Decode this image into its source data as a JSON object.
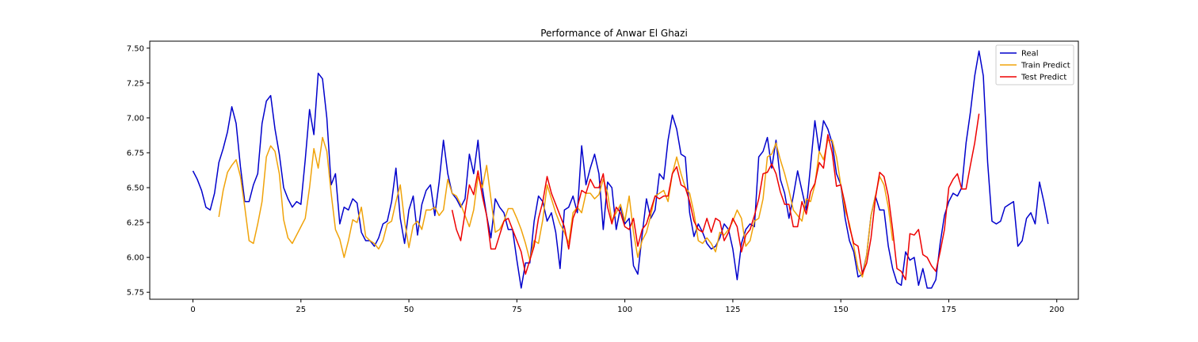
{
  "chart_data": {
    "type": "line",
    "title": "Performance of Anwar El Ghazi",
    "xlabel": "",
    "ylabel": "",
    "xlim": [
      -10,
      205
    ],
    "ylim": [
      5.7,
      7.55
    ],
    "xticks": [
      0,
      25,
      50,
      75,
      100,
      125,
      150,
      175,
      200
    ],
    "xtick_labels": [
      "0",
      "25",
      "50",
      "75",
      "100",
      "125",
      "150",
      "175",
      "200"
    ],
    "yticks": [
      5.75,
      6.0,
      6.25,
      6.5,
      6.75,
      7.0,
      7.25,
      7.5
    ],
    "ytick_labels": [
      "5.75",
      "6.00",
      "6.25",
      "6.50",
      "6.75",
      "7.00",
      "7.25",
      "7.50"
    ],
    "grid": false,
    "legend_position": "top-right",
    "series": [
      {
        "name": "Real",
        "color": "#0000cc",
        "x0": 0,
        "values": [
          6.62,
          6.56,
          6.48,
          6.36,
          6.34,
          6.46,
          6.68,
          6.78,
          6.9,
          7.08,
          6.96,
          6.65,
          6.4,
          6.4,
          6.52,
          6.6,
          6.96,
          7.12,
          7.16,
          6.92,
          6.74,
          6.5,
          6.42,
          6.36,
          6.4,
          6.38,
          6.7,
          7.06,
          6.88,
          7.32,
          7.28,
          7.0,
          6.52,
          6.6,
          6.24,
          6.36,
          6.34,
          6.42,
          6.39,
          6.18,
          6.12,
          6.12,
          6.08,
          6.14,
          6.24,
          6.26,
          6.4,
          6.64,
          6.28,
          6.1,
          6.34,
          6.44,
          6.16,
          6.38,
          6.48,
          6.52,
          6.3,
          6.54,
          6.84,
          6.6,
          6.46,
          6.42,
          6.36,
          6.42,
          6.74,
          6.6,
          6.84,
          6.5,
          6.3,
          6.14,
          6.42,
          6.36,
          6.32,
          6.2,
          6.2,
          5.98,
          5.78,
          5.96,
          5.96,
          6.26,
          6.44,
          6.4,
          6.26,
          6.32,
          6.18,
          5.92,
          6.34,
          6.36,
          6.44,
          6.32,
          6.8,
          6.52,
          6.64,
          6.74,
          6.6,
          6.2,
          6.54,
          6.5,
          6.2,
          6.36,
          6.24,
          6.28,
          5.94,
          5.88,
          6.16,
          6.42,
          6.28,
          6.34,
          6.6,
          6.56,
          6.84,
          7.02,
          6.92,
          6.74,
          6.72,
          6.32,
          6.15,
          6.24,
          6.18,
          6.1,
          6.06,
          6.08,
          6.14,
          6.24,
          6.2,
          6.06,
          5.84,
          6.1,
          6.2,
          6.24,
          6.22,
          6.72,
          6.76,
          6.86,
          6.64,
          6.84,
          6.56,
          6.46,
          6.28,
          6.44,
          6.62,
          6.48,
          6.34,
          6.66,
          6.98,
          6.76,
          6.98,
          6.92,
          6.82,
          6.6,
          6.52,
          6.28,
          6.12,
          6.04,
          5.86,
          5.88,
          6.02,
          6.3,
          6.44,
          6.34,
          6.34,
          6.08,
          5.92,
          5.82,
          5.8,
          6.04,
          5.98,
          6.0,
          5.8,
          5.92,
          5.78,
          5.78,
          5.84,
          6.1,
          6.3,
          6.4,
          6.46,
          6.44,
          6.5,
          6.82,
          7.04,
          7.3,
          7.48,
          7.3,
          6.68,
          6.26,
          6.24,
          6.26,
          6.36,
          6.38,
          6.4,
          6.08,
          6.12,
          6.28,
          6.32,
          6.24,
          6.54,
          6.4,
          6.24
        ]
      },
      {
        "name": "Train Predict",
        "color": "#f0a30a",
        "x0": 6,
        "values": [
          6.29,
          6.48,
          6.61,
          6.66,
          6.7,
          6.58,
          6.36,
          6.12,
          6.1,
          6.24,
          6.4,
          6.72,
          6.8,
          6.76,
          6.6,
          6.27,
          6.14,
          6.1,
          6.16,
          6.22,
          6.28,
          6.5,
          6.78,
          6.64,
          6.86,
          6.76,
          6.46,
          6.2,
          6.13,
          6.0,
          6.12,
          6.27,
          6.25,
          6.36,
          6.15,
          6.12,
          6.1,
          6.06,
          6.12,
          6.24,
          6.26,
          6.4,
          6.52,
          6.26,
          6.07,
          6.23,
          6.26,
          6.2,
          6.34,
          6.34,
          6.36,
          6.3,
          6.34,
          6.56,
          6.46,
          6.44,
          6.38,
          6.3,
          6.22,
          6.34,
          6.58,
          6.5,
          6.66,
          6.42,
          6.18,
          6.2,
          6.26,
          6.35,
          6.35,
          6.28,
          6.2,
          6.1,
          5.98,
          6.12,
          6.1,
          6.27,
          6.52,
          6.42,
          6.32,
          6.24,
          6.18,
          6.1,
          6.32,
          6.36,
          6.32,
          6.46,
          6.46,
          6.42,
          6.45,
          6.56,
          6.46,
          6.26,
          6.32,
          6.38,
          6.26,
          6.44,
          6.18,
          6.0,
          6.12,
          6.18,
          6.3,
          6.44,
          6.46,
          6.48,
          6.4,
          6.6,
          6.72,
          6.6,
          6.5,
          6.46,
          6.32,
          6.12,
          6.1,
          6.14,
          6.1,
          6.04,
          6.18,
          6.16,
          6.2,
          6.26,
          6.34,
          6.28,
          6.08,
          6.12,
          6.26,
          6.28,
          6.42,
          6.72,
          6.74,
          6.82,
          6.7,
          6.6,
          6.48,
          6.34,
          6.3,
          6.26,
          6.42,
          6.4,
          6.52,
          6.76,
          6.7,
          6.84,
          6.84,
          6.72,
          6.52,
          6.34,
          6.24,
          6.08,
          5.92,
          5.86,
          6.02,
          6.3,
          6.44,
          6.58,
          6.52,
          6.36,
          6.12
        ]
      },
      {
        "name": "Test Predict",
        "color": "#ee0000",
        "x0": 60,
        "values": [
          6.34,
          6.2,
          6.12,
          6.32,
          6.52,
          6.45,
          6.62,
          6.44,
          6.3,
          6.06,
          6.06,
          6.16,
          6.26,
          6.28,
          6.2,
          6.12,
          6.04,
          5.88,
          5.98,
          6.08,
          6.28,
          6.4,
          6.58,
          6.46,
          6.38,
          6.3,
          6.22,
          6.06,
          6.28,
          6.36,
          6.48,
          6.46,
          6.56,
          6.5,
          6.5,
          6.6,
          6.36,
          6.24,
          6.36,
          6.32,
          6.22,
          6.2,
          6.28,
          6.08,
          6.2,
          6.24,
          6.34,
          6.44,
          6.42,
          6.44,
          6.44,
          6.6,
          6.65,
          6.52,
          6.5,
          6.4,
          6.26,
          6.2,
          6.18,
          6.28,
          6.18,
          6.28,
          6.26,
          6.12,
          6.18,
          6.28,
          6.22,
          6.04,
          6.16,
          6.2,
          6.3,
          6.42,
          6.6,
          6.61,
          6.67,
          6.6,
          6.47,
          6.38,
          6.38,
          6.22,
          6.22,
          6.4,
          6.31,
          6.47,
          6.53,
          6.68,
          6.64,
          6.88,
          6.75,
          6.51,
          6.52,
          6.38,
          6.22,
          6.1,
          6.08,
          5.88,
          5.96,
          6.14,
          6.42,
          6.61,
          6.58,
          6.44,
          6.2,
          5.92,
          5.9,
          5.84,
          6.17,
          6.16,
          6.2,
          6.02,
          6.0,
          5.94,
          5.9,
          6.04,
          6.2,
          6.5,
          6.56,
          6.6,
          6.49,
          6.49,
          6.66,
          6.82,
          7.03
        ]
      }
    ]
  }
}
